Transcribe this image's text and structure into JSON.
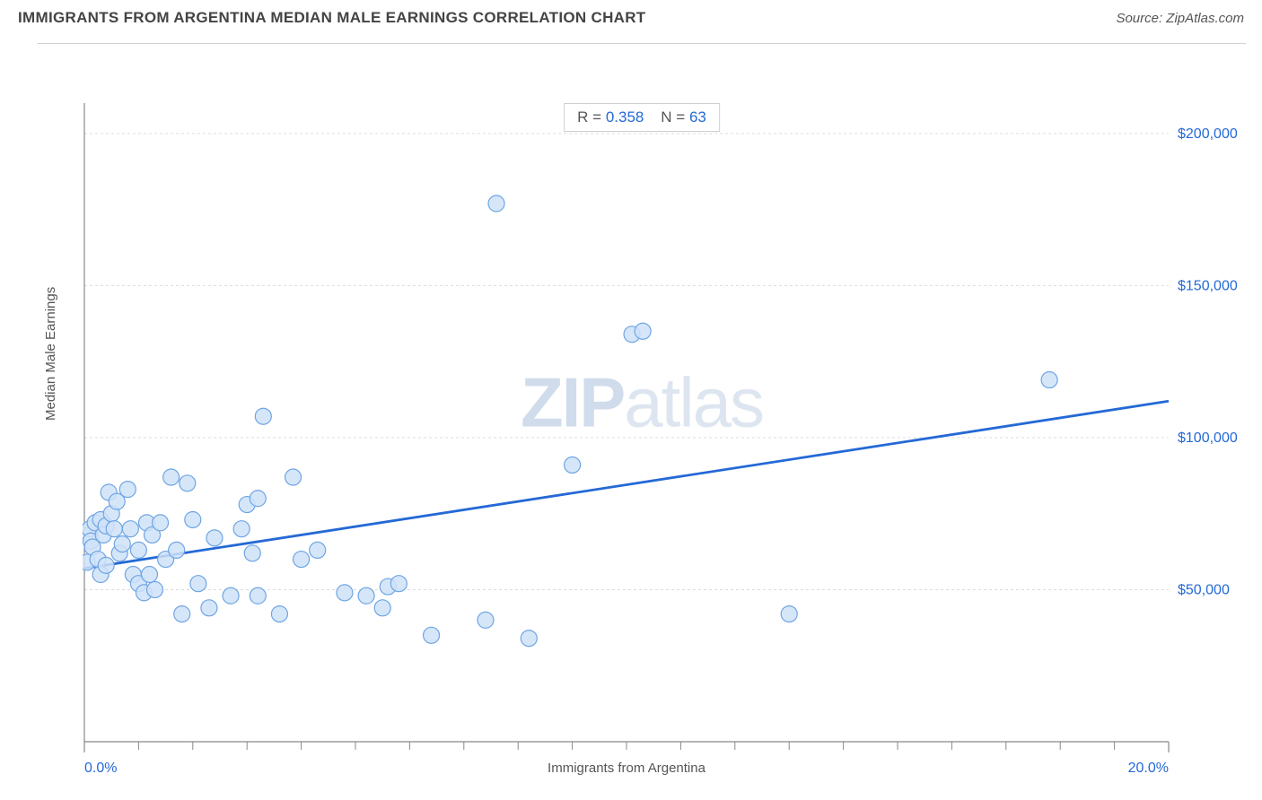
{
  "header": {
    "title": "IMMIGRANTS FROM ARGENTINA MEDIAN MALE EARNINGS CORRELATION CHART",
    "source": "Source: ZipAtlas.com"
  },
  "stats": {
    "r_label": "R =",
    "r_value": "0.358",
    "n_label": "N =",
    "n_value": "63"
  },
  "watermark": {
    "zip": "ZIP",
    "atlas": "atlas"
  },
  "chart": {
    "type": "scatter",
    "xlabel": "Immigrants from Argentina",
    "ylabel": "Median Male Earnings",
    "xlim": [
      0,
      20
    ],
    "ylim": [
      0,
      210000
    ],
    "x_tick_start": 0,
    "x_tick_end": 20,
    "x_tick_labels": [
      {
        "v": 0,
        "label": "0.0%"
      },
      {
        "v": 20,
        "label": "20.0%"
      }
    ],
    "y_gridlines": [
      50000,
      100000,
      150000,
      200000
    ],
    "y_tick_labels": [
      {
        "v": 50000,
        "label": "$50,000"
      },
      {
        "v": 100000,
        "label": "$100,000"
      },
      {
        "v": 150000,
        "label": "$150,000"
      },
      {
        "v": 200000,
        "label": "$200,000"
      }
    ],
    "x_minor_ticks": [
      1,
      2,
      3,
      4,
      5,
      6,
      7,
      8,
      9,
      10,
      11,
      12,
      13,
      14,
      15,
      16,
      17,
      18,
      19
    ],
    "marker": {
      "radius": 9,
      "fill": "#cfe2f8",
      "stroke": "#6ea5e4",
      "stroke_width": 1.2,
      "opacity": 0.85
    },
    "trend_line": {
      "x1": 0,
      "y1": 57000,
      "x2": 20,
      "y2": 112000,
      "color": "#2469d6",
      "width": 2.8
    },
    "axis_color": "#888888",
    "grid_color": "#dcdcdc",
    "tick_label_color": "#2469d6",
    "axis_label_color": "#555555",
    "label_fontsize": 15,
    "tick_fontsize": 16,
    "background_color": "#ffffff",
    "points": [
      {
        "x": 0.05,
        "y": 59000
      },
      {
        "x": 0.1,
        "y": 68000
      },
      {
        "x": 0.1,
        "y": 70000
      },
      {
        "x": 0.12,
        "y": 66000
      },
      {
        "x": 0.15,
        "y": 64000
      },
      {
        "x": 0.2,
        "y": 72000
      },
      {
        "x": 0.25,
        "y": 60000
      },
      {
        "x": 0.3,
        "y": 55000
      },
      {
        "x": 0.3,
        "y": 73000
      },
      {
        "x": 0.35,
        "y": 68000
      },
      {
        "x": 0.4,
        "y": 71000
      },
      {
        "x": 0.4,
        "y": 58000
      },
      {
        "x": 0.45,
        "y": 82000
      },
      {
        "x": 0.5,
        "y": 75000
      },
      {
        "x": 0.55,
        "y": 70000
      },
      {
        "x": 0.6,
        "y": 79000
      },
      {
        "x": 0.65,
        "y": 62000
      },
      {
        "x": 0.7,
        "y": 65000
      },
      {
        "x": 0.8,
        "y": 83000
      },
      {
        "x": 0.85,
        "y": 70000
      },
      {
        "x": 0.9,
        "y": 55000
      },
      {
        "x": 1.0,
        "y": 52000
      },
      {
        "x": 1.0,
        "y": 63000
      },
      {
        "x": 1.1,
        "y": 49000
      },
      {
        "x": 1.15,
        "y": 72000
      },
      {
        "x": 1.2,
        "y": 55000
      },
      {
        "x": 1.25,
        "y": 68000
      },
      {
        "x": 1.3,
        "y": 50000
      },
      {
        "x": 1.4,
        "y": 72000
      },
      {
        "x": 1.5,
        "y": 60000
      },
      {
        "x": 1.6,
        "y": 87000
      },
      {
        "x": 1.7,
        "y": 63000
      },
      {
        "x": 1.8,
        "y": 42000
      },
      {
        "x": 1.9,
        "y": 85000
      },
      {
        "x": 2.0,
        "y": 73000
      },
      {
        "x": 2.1,
        "y": 52000
      },
      {
        "x": 2.3,
        "y": 44000
      },
      {
        "x": 2.4,
        "y": 67000
      },
      {
        "x": 2.7,
        "y": 48000
      },
      {
        "x": 2.9,
        "y": 70000
      },
      {
        "x": 3.0,
        "y": 78000
      },
      {
        "x": 3.1,
        "y": 62000
      },
      {
        "x": 3.2,
        "y": 48000
      },
      {
        "x": 3.2,
        "y": 80000
      },
      {
        "x": 3.3,
        "y": 107000
      },
      {
        "x": 3.6,
        "y": 42000
      },
      {
        "x": 3.85,
        "y": 87000
      },
      {
        "x": 4.0,
        "y": 60000
      },
      {
        "x": 4.3,
        "y": 63000
      },
      {
        "x": 4.8,
        "y": 49000
      },
      {
        "x": 5.2,
        "y": 48000
      },
      {
        "x": 5.5,
        "y": 44000
      },
      {
        "x": 5.6,
        "y": 51000
      },
      {
        "x": 5.8,
        "y": 52000
      },
      {
        "x": 6.4,
        "y": 35000
      },
      {
        "x": 7.4,
        "y": 40000
      },
      {
        "x": 7.6,
        "y": 177000
      },
      {
        "x": 8.2,
        "y": 34000
      },
      {
        "x": 9.0,
        "y": 91000
      },
      {
        "x": 10.1,
        "y": 134000
      },
      {
        "x": 10.3,
        "y": 135000
      },
      {
        "x": 13.0,
        "y": 42000
      },
      {
        "x": 17.8,
        "y": 119000
      }
    ]
  }
}
